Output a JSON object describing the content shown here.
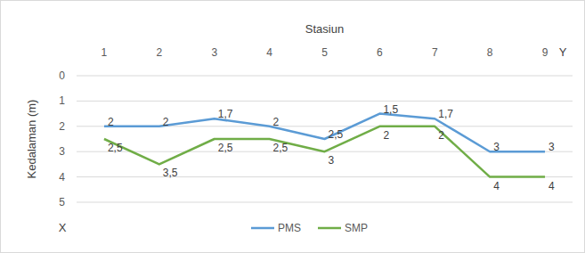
{
  "chart_data": {
    "type": "line",
    "x_label": "Stasiun",
    "y_label": "Kedalaman (m)",
    "categories": [
      "1",
      "2",
      "3",
      "4",
      "5",
      "6",
      "7",
      "8",
      "9"
    ],
    "series": [
      {
        "name": "PMS",
        "color": "#5b9bd5",
        "values": [
          2,
          2,
          1.7,
          2,
          2.5,
          1.5,
          1.7,
          3,
          3
        ],
        "value_labels": [
          "2",
          "2",
          "1,7",
          "2",
          "2,5",
          "1,5",
          "1,7",
          "3",
          "3"
        ]
      },
      {
        "name": "SMP",
        "color": "#70ad47",
        "values": [
          2.5,
          3.5,
          2.5,
          2.5,
          3,
          2,
          2,
          4,
          4
        ],
        "value_labels": [
          "2,5",
          "3,5",
          "2,5",
          "2,5",
          "3",
          "2",
          "2",
          "4",
          "4"
        ]
      }
    ],
    "ylim": [
      0,
      5
    ],
    "yticks": [
      0,
      1,
      2,
      3,
      4,
      5
    ],
    "grid": true,
    "legend": "bottom",
    "data_labels": true,
    "annotations": [
      {
        "text": "Y"
      },
      {
        "text": "X"
      }
    ]
  }
}
